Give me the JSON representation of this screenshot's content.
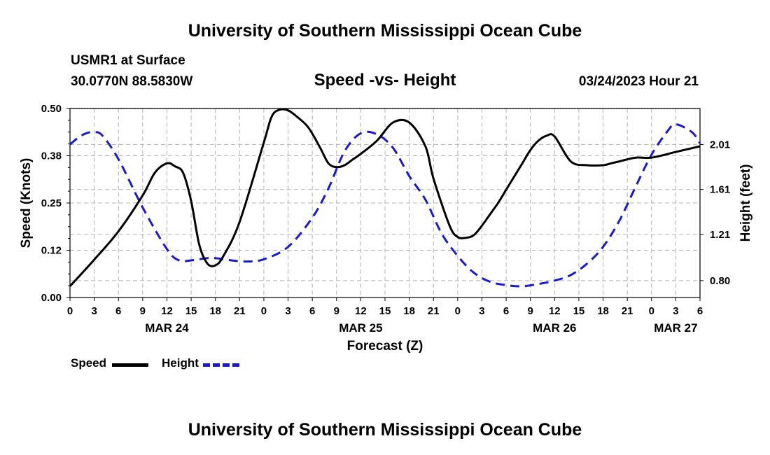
{
  "page": {
    "title_top": "University of Southern Mississippi Ocean Cube",
    "title_bottom": "University of Southern Mississippi Ocean Cube",
    "station": "USMR1 at Surface",
    "coords": "30.0770N  88.5830W",
    "chart_title": "Speed -vs- Height",
    "issued": "03/24/2023 Hour 21"
  },
  "legend": {
    "speed_label": "Speed",
    "height_label": "Height"
  },
  "colors": {
    "speed": "#000000",
    "height": "#1a1acd",
    "grid": "#b4b4b4"
  },
  "chart_data": {
    "type": "line",
    "title": "Speed -vs- Height",
    "xlabel": "Forecast (Z)",
    "ylabel_left": "Speed (Knots)",
    "ylabel_right": "Height (feet)",
    "x_unit": "hours since MAR 24 00Z",
    "xlim": [
      0,
      78
    ],
    "x_ticks": [
      0,
      3,
      6,
      9,
      12,
      15,
      18,
      21,
      24,
      27,
      30,
      33,
      36,
      39,
      42,
      45,
      48,
      51,
      54,
      57,
      60,
      63,
      66,
      69,
      72,
      75,
      78
    ],
    "x_tick_labels": [
      "0",
      "3",
      "6",
      "9",
      "12",
      "15",
      "18",
      "21",
      "0",
      "3",
      "6",
      "9",
      "12",
      "15",
      "18",
      "21",
      "0",
      "3",
      "6",
      "9",
      "12",
      "15",
      "18",
      "21",
      "0",
      "3",
      "6"
    ],
    "date_labels": [
      {
        "x": 12,
        "label": "MAR 24"
      },
      {
        "x": 36,
        "label": "MAR 25"
      },
      {
        "x": 60,
        "label": "MAR 26"
      },
      {
        "x": 75,
        "label": "MAR 27"
      }
    ],
    "ylim_left": [
      0,
      0.5
    ],
    "y_ticks_left": [
      0.0,
      0.125,
      0.25,
      0.375,
      0.5
    ],
    "y_tick_labels_left": [
      "0.00",
      "0.12",
      "0.25",
      "0.38",
      "0.50"
    ],
    "ylim_right": [
      0.65,
      2.33
    ],
    "y_ticks_right": [
      0.8,
      1.21,
      1.61,
      2.01
    ],
    "y_tick_labels_right": [
      "0.80",
      "1.21",
      "1.61",
      "2.01"
    ],
    "grid": true,
    "series": [
      {
        "name": "Speed",
        "axis": "left",
        "style": "solid",
        "x": [
          0,
          3,
          6,
          9,
          10.5,
          12,
          13,
          14,
          15,
          16,
          17,
          18,
          19,
          21,
          24,
          25,
          26,
          27,
          28,
          29.5,
          31,
          32,
          33,
          34,
          35,
          36,
          38,
          40,
          42,
          44,
          45,
          47,
          48,
          49,
          50,
          51,
          52,
          53,
          54,
          55,
          56,
          57,
          58,
          59,
          60,
          62,
          64,
          66,
          67,
          68,
          70,
          72,
          75,
          78
        ],
        "values": [
          0.03,
          0.1,
          0.175,
          0.27,
          0.33,
          0.355,
          0.347,
          0.33,
          0.255,
          0.14,
          0.09,
          0.085,
          0.11,
          0.2,
          0.41,
          0.48,
          0.497,
          0.495,
          0.48,
          0.45,
          0.395,
          0.355,
          0.345,
          0.35,
          0.365,
          0.38,
          0.415,
          0.463,
          0.463,
          0.4,
          0.315,
          0.19,
          0.16,
          0.158,
          0.165,
          0.19,
          0.22,
          0.25,
          0.285,
          0.32,
          0.355,
          0.39,
          0.415,
          0.428,
          0.426,
          0.36,
          0.35,
          0.35,
          0.355,
          0.36,
          0.37,
          0.37,
          0.385,
          0.4
        ]
      },
      {
        "name": "Height",
        "axis": "right",
        "style": "dashed",
        "x": [
          0,
          1,
          2,
          3,
          4,
          6,
          9,
          12,
          13.5,
          15,
          17,
          18,
          20,
          22,
          24,
          27,
          30,
          32,
          34,
          36,
          38,
          40,
          42,
          44,
          46,
          48,
          50,
          52,
          54,
          56,
          58,
          60,
          62,
          64,
          66,
          68,
          70,
          72,
          74,
          75,
          77,
          78
        ],
        "values": [
          2.01,
          2.07,
          2.11,
          2.12,
          2.09,
          1.88,
          1.45,
          1.08,
          0.98,
          0.98,
          1.0,
          1.0,
          0.98,
          0.97,
          0.99,
          1.1,
          1.36,
          1.62,
          1.95,
          2.11,
          2.1,
          1.98,
          1.73,
          1.52,
          1.22,
          1.02,
          0.87,
          0.79,
          0.76,
          0.75,
          0.77,
          0.8,
          0.85,
          0.95,
          1.1,
          1.33,
          1.63,
          1.92,
          2.13,
          2.19,
          2.12,
          2.02
        ]
      }
    ],
    "legend_position": "bottom-left"
  }
}
